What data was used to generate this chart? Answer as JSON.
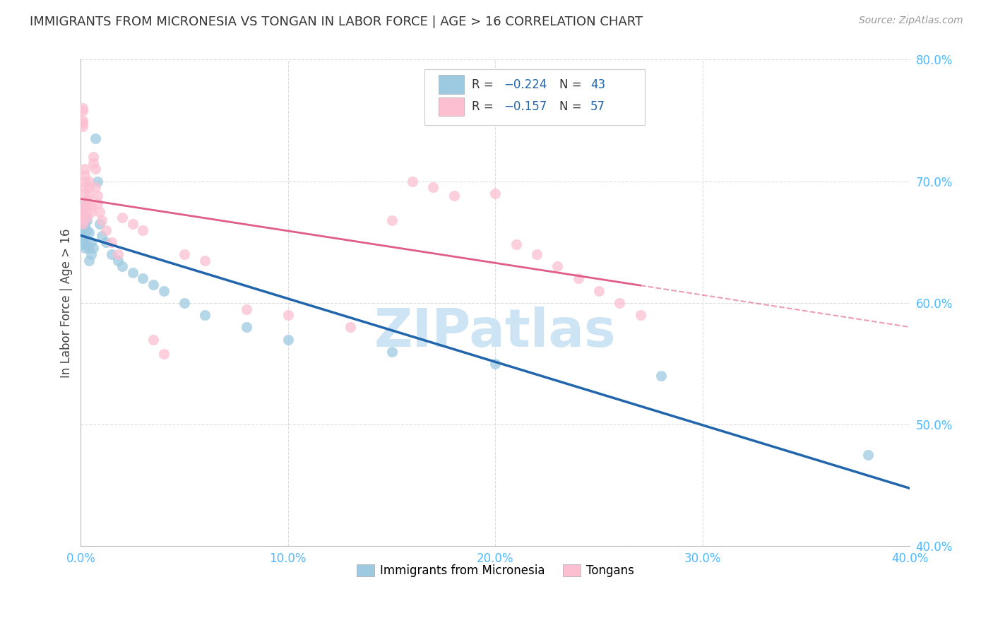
{
  "title": "IMMIGRANTS FROM MICRONESIA VS TONGAN IN LABOR FORCE | AGE > 16 CORRELATION CHART",
  "source": "Source: ZipAtlas.com",
  "ylabel": "In Labor Force | Age > 16",
  "xlim": [
    0.0,
    0.4
  ],
  "ylim": [
    0.4,
    0.8
  ],
  "xticks": [
    0.0,
    0.1,
    0.2,
    0.3,
    0.4
  ],
  "yticks": [
    0.4,
    0.5,
    0.6,
    0.7,
    0.8
  ],
  "xtick_labels": [
    "0.0%",
    "10.0%",
    "20.0%",
    "30.0%",
    "40.0%"
  ],
  "ytick_labels": [
    "40.0%",
    "50.0%",
    "60.0%",
    "70.0%",
    "80.0%"
  ],
  "blue_color": "#9ecae1",
  "pink_color": "#fcbfd2",
  "blue_line_color": "#2166ac",
  "pink_line_color": "#e05c8a",
  "tick_color": "#4db8ff",
  "legend_label_blue": "Immigrants from Micronesia",
  "legend_label_pink": "Tongans",
  "watermark": "ZIPatlas",
  "watermark_color": "#cde4f5",
  "background_color": "#ffffff",
  "grid_color": "#dddddd",
  "blue_x": [
    0.001,
    0.001,
    0.001,
    0.001,
    0.001,
    0.001,
    0.001,
    0.001,
    0.001,
    0.001,
    0.002,
    0.002,
    0.002,
    0.002,
    0.003,
    0.003,
    0.003,
    0.004,
    0.004,
    0.004,
    0.005,
    0.005,
    0.006,
    0.007,
    0.008,
    0.009,
    0.01,
    0.012,
    0.015,
    0.018,
    0.02,
    0.025,
    0.03,
    0.035,
    0.04,
    0.05,
    0.06,
    0.08,
    0.1,
    0.15,
    0.2,
    0.28,
    0.38
  ],
  "blue_y": [
    0.68,
    0.675,
    0.672,
    0.668,
    0.665,
    0.66,
    0.658,
    0.655,
    0.65,
    0.648,
    0.672,
    0.665,
    0.655,
    0.645,
    0.668,
    0.66,
    0.648,
    0.658,
    0.645,
    0.635,
    0.65,
    0.64,
    0.645,
    0.735,
    0.7,
    0.665,
    0.655,
    0.65,
    0.64,
    0.635,
    0.63,
    0.625,
    0.62,
    0.615,
    0.61,
    0.6,
    0.59,
    0.58,
    0.57,
    0.56,
    0.55,
    0.54,
    0.475
  ],
  "pink_x": [
    0.001,
    0.001,
    0.001,
    0.001,
    0.001,
    0.001,
    0.001,
    0.001,
    0.001,
    0.001,
    0.002,
    0.002,
    0.002,
    0.002,
    0.002,
    0.003,
    0.003,
    0.003,
    0.003,
    0.004,
    0.004,
    0.004,
    0.005,
    0.005,
    0.006,
    0.006,
    0.007,
    0.007,
    0.008,
    0.008,
    0.009,
    0.01,
    0.012,
    0.015,
    0.018,
    0.02,
    0.025,
    0.03,
    0.035,
    0.04,
    0.05,
    0.06,
    0.08,
    0.1,
    0.13,
    0.15,
    0.16,
    0.17,
    0.18,
    0.2,
    0.21,
    0.22,
    0.23,
    0.24,
    0.25,
    0.26,
    0.27
  ],
  "pink_y": [
    0.68,
    0.676,
    0.672,
    0.668,
    0.665,
    0.76,
    0.758,
    0.75,
    0.748,
    0.745,
    0.71,
    0.705,
    0.7,
    0.695,
    0.69,
    0.685,
    0.68,
    0.675,
    0.67,
    0.7,
    0.695,
    0.688,
    0.68,
    0.675,
    0.72,
    0.715,
    0.71,
    0.695,
    0.688,
    0.682,
    0.675,
    0.668,
    0.66,
    0.65,
    0.64,
    0.67,
    0.665,
    0.66,
    0.57,
    0.558,
    0.64,
    0.635,
    0.595,
    0.59,
    0.58,
    0.668,
    0.7,
    0.695,
    0.688,
    0.69,
    0.648,
    0.64,
    0.63,
    0.62,
    0.61,
    0.6,
    0.59
  ]
}
